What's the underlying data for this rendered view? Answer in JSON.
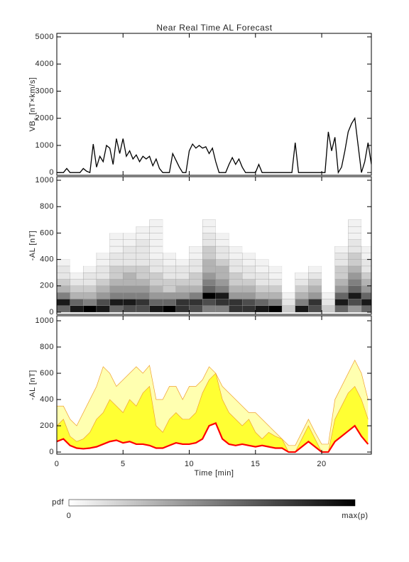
{
  "title": "Near Real Time AL Forecast",
  "colorbar": {
    "label": "pdf",
    "min_label": "0",
    "max_label": "max(p)"
  },
  "chart_data": [
    {
      "type": "line",
      "ylabel": [
        "VB",
        "s",
        " [nT×km/s]"
      ],
      "color": "#000000",
      "xlim": [
        0,
        23.75
      ],
      "ylim": [
        -100,
        5130
      ],
      "yticks": [
        0,
        1000,
        2000,
        3000,
        4000,
        5000
      ],
      "xticks": [
        0,
        5,
        10,
        15,
        20
      ],
      "x": [
        0,
        0.25,
        0.5,
        0.75,
        1,
        1.25,
        1.5,
        1.75,
        2,
        2.25,
        2.5,
        2.75,
        3,
        3.25,
        3.5,
        3.75,
        4,
        4.25,
        4.5,
        4.75,
        5,
        5.25,
        5.5,
        5.75,
        6,
        6.25,
        6.5,
        6.75,
        7,
        7.25,
        7.5,
        7.75,
        8,
        8.25,
        8.5,
        8.75,
        9,
        9.25,
        9.5,
        9.75,
        10,
        10.25,
        10.5,
        10.75,
        11,
        11.25,
        11.5,
        11.75,
        12,
        12.25,
        12.5,
        12.75,
        13,
        13.25,
        13.5,
        13.75,
        14,
        14.25,
        14.5,
        14.75,
        15,
        15.25,
        15.5,
        15.75,
        16,
        16.25,
        16.5,
        16.75,
        17,
        17.25,
        17.5,
        17.75,
        18,
        18.25,
        18.5,
        18.75,
        19,
        19.25,
        19.5,
        19.75,
        20,
        20.25,
        20.5,
        20.75,
        21,
        21.25,
        21.5,
        21.75,
        22,
        22.25,
        22.5,
        22.75,
        23,
        23.25,
        23.5,
        23.75
      ],
      "values": [
        0,
        0,
        0,
        150,
        0,
        0,
        0,
        0,
        150,
        50,
        0,
        1050,
        200,
        600,
        400,
        1000,
        900,
        300,
        1250,
        700,
        1250,
        600,
        800,
        500,
        650,
        400,
        600,
        500,
        600,
        250,
        500,
        150,
        0,
        0,
        0,
        700,
        450,
        200,
        0,
        0,
        800,
        1050,
        900,
        1000,
        900,
        950,
        700,
        900,
        400,
        0,
        0,
        0,
        300,
        550,
        300,
        500,
        200,
        0,
        0,
        0,
        0,
        300,
        0,
        0,
        0,
        0,
        0,
        0,
        0,
        0,
        0,
        0,
        1100,
        0,
        0,
        0,
        0,
        0,
        0,
        0,
        0,
        0,
        1500,
        800,
        1300,
        0,
        200,
        800,
        1500,
        1800,
        2000,
        1000,
        0,
        400,
        1100,
        300
      ]
    },
    {
      "type": "heatmap",
      "ylabel": "-AL [nT]",
      "xlim": [
        0,
        23.75
      ],
      "ylim": [
        -16,
        1027
      ],
      "yticks": [
        0,
        200,
        400,
        600,
        800,
        1000
      ],
      "xticks": [
        0,
        5,
        10,
        15,
        20
      ],
      "x_bins": [
        0,
        1,
        2,
        3,
        4,
        5,
        6,
        7,
        8,
        9,
        10,
        11,
        12,
        13,
        14,
        15,
        16,
        17,
        18,
        19,
        20,
        21,
        22,
        23,
        23.75
      ],
      "y_bins": [
        0,
        50,
        100,
        150,
        200,
        250,
        300,
        350,
        400,
        450,
        500,
        550,
        600,
        650,
        700
      ],
      "values": [
        [
          0.6,
          0.9,
          0.5,
          0.3,
          0.2,
          0.1,
          0.1,
          0.05,
          0,
          0,
          0,
          0,
          0,
          0
        ],
        [
          0.9,
          0.6,
          0.3,
          0.2,
          0.1,
          0.05,
          0,
          0,
          0,
          0,
          0,
          0,
          0,
          0
        ],
        [
          1,
          0.5,
          0.3,
          0.2,
          0.1,
          0.1,
          0.05,
          0,
          0,
          0,
          0,
          0,
          0,
          0
        ],
        [
          0.9,
          0.7,
          0.4,
          0.3,
          0.2,
          0.1,
          0.1,
          0.05,
          0.05,
          0,
          0,
          0,
          0,
          0
        ],
        [
          0.6,
          0.9,
          0.5,
          0.4,
          0.3,
          0.2,
          0.2,
          0.1,
          0.1,
          0.05,
          0.05,
          0.05,
          0,
          0
        ],
        [
          0.7,
          0.9,
          0.5,
          0.4,
          0.3,
          0.3,
          0.2,
          0.1,
          0.1,
          0.1,
          0.05,
          0.05,
          0,
          0
        ],
        [
          0.7,
          0.8,
          0.5,
          0.4,
          0.3,
          0.2,
          0.2,
          0.1,
          0.1,
          0.1,
          0.1,
          0.05,
          0.05,
          0
        ],
        [
          0.9,
          0.6,
          0.4,
          0.3,
          0.2,
          0.2,
          0.1,
          0.1,
          0.05,
          0.05,
          0.05,
          0.05,
          0.05,
          0.05
        ],
        [
          1,
          0.6,
          0.4,
          0.2,
          0.2,
          0.1,
          0.1,
          0.05,
          0.05,
          0,
          0,
          0,
          0,
          0
        ],
        [
          0.8,
          0.8,
          0.4,
          0.3,
          0.2,
          0.1,
          0.1,
          0.05,
          0,
          0,
          0,
          0,
          0,
          0
        ],
        [
          0.7,
          0.8,
          0.5,
          0.3,
          0.2,
          0.2,
          0.1,
          0.1,
          0.05,
          0.05,
          0,
          0,
          0,
          0
        ],
        [
          0.5,
          0.7,
          1,
          0.6,
          0.5,
          0.4,
          0.3,
          0.3,
          0.2,
          0.2,
          0.1,
          0.1,
          0.05,
          0.05
        ],
        [
          0.5,
          0.8,
          0.9,
          0.5,
          0.4,
          0.3,
          0.3,
          0.2,
          0.1,
          0.1,
          0.05,
          0.05,
          0,
          0
        ],
        [
          0.8,
          0.8,
          0.4,
          0.3,
          0.2,
          0.2,
          0.1,
          0.1,
          0.05,
          0.05,
          0,
          0,
          0,
          0
        ],
        [
          0.8,
          0.7,
          0.4,
          0.3,
          0.2,
          0.1,
          0.1,
          0.05,
          0.05,
          0,
          0,
          0,
          0,
          0
        ],
        [
          0.9,
          0.6,
          0.3,
          0.2,
          0.1,
          0.1,
          0.05,
          0.05,
          0,
          0,
          0,
          0,
          0,
          0
        ],
        [
          1,
          0.5,
          0.3,
          0.2,
          0.1,
          0.05,
          0.05,
          0,
          0,
          0,
          0,
          0,
          0,
          0
        ],
        [
          0.2,
          0.1,
          0.05,
          0,
          0,
          0,
          0,
          0,
          0,
          0,
          0,
          0,
          0,
          0
        ],
        [
          0.9,
          0.5,
          0.3,
          0.2,
          0.1,
          0.05,
          0,
          0,
          0,
          0,
          0,
          0,
          0,
          0
        ],
        [
          0.7,
          0.8,
          0.4,
          0.3,
          0.2,
          0.1,
          0.05,
          0,
          0,
          0,
          0,
          0,
          0,
          0
        ],
        [
          0.2,
          0.1,
          0.05,
          0,
          0,
          0,
          0,
          0,
          0,
          0,
          0,
          0,
          0,
          0
        ],
        [
          0.6,
          0.9,
          0.6,
          0.4,
          0.3,
          0.2,
          0.2,
          0.1,
          0.1,
          0.05,
          0,
          0,
          0,
          0
        ],
        [
          0.4,
          0.7,
          0.9,
          0.6,
          0.5,
          0.4,
          0.3,
          0.2,
          0.2,
          0.1,
          0.1,
          0.05,
          0.05,
          0.05
        ],
        [
          0.6,
          0.9,
          0.6,
          0.4,
          0.3,
          0.2,
          0.1,
          0.1,
          0.05,
          0.05,
          0,
          0,
          0,
          0
        ]
      ]
    },
    {
      "type": "band",
      "ylabel": "-AL [nT]",
      "xlabel": "Time [min]",
      "xlim": [
        0,
        23.75
      ],
      "ylim": [
        -16,
        1038
      ],
      "yticks": [
        0,
        200,
        400,
        600,
        800,
        1000
      ],
      "xticks": [
        0,
        5,
        10,
        15,
        20
      ],
      "x": [
        0,
        0.5,
        1,
        1.5,
        2,
        2.5,
        3,
        3.5,
        4,
        4.5,
        5,
        5.5,
        6,
        6.5,
        7,
        7.5,
        8,
        8.5,
        9,
        9.5,
        10,
        10.5,
        11,
        11.5,
        12,
        12.5,
        13,
        13.5,
        14,
        14.5,
        15,
        15.5,
        16,
        16.5,
        17,
        17.5,
        18,
        18.5,
        19,
        19.5,
        20,
        20.5,
        21,
        21.5,
        22,
        22.5,
        23,
        23.5
      ],
      "series": [
        {
          "color": "#ff0000",
          "values": [
            80,
            100,
            50,
            30,
            25,
            30,
            40,
            60,
            80,
            90,
            70,
            80,
            60,
            60,
            50,
            30,
            30,
            50,
            70,
            60,
            60,
            70,
            100,
            200,
            220,
            100,
            60,
            50,
            60,
            50,
            40,
            50,
            40,
            30,
            30,
            0,
            0,
            40,
            80,
            40,
            0,
            0,
            80,
            120,
            160,
            200,
            120,
            60
          ]
        },
        {
          "color": "#ffff33",
          "values": [
            200,
            250,
            120,
            80,
            100,
            150,
            250,
            300,
            400,
            350,
            300,
            400,
            350,
            450,
            500,
            200,
            150,
            250,
            300,
            250,
            250,
            300,
            450,
            550,
            600,
            400,
            300,
            250,
            200,
            250,
            150,
            100,
            150,
            120,
            100,
            0,
            0,
            100,
            200,
            100,
            0,
            0,
            250,
            350,
            450,
            500,
            400,
            250
          ]
        },
        {
          "color": "#ffffb0",
          "values": [
            350,
            350,
            250,
            200,
            300,
            400,
            500,
            650,
            600,
            500,
            550,
            600,
            650,
            600,
            660,
            400,
            400,
            500,
            500,
            400,
            500,
            500,
            550,
            650,
            600,
            500,
            450,
            400,
            350,
            300,
            300,
            250,
            200,
            150,
            100,
            50,
            50,
            150,
            250,
            150,
            60,
            60,
            400,
            500,
            600,
            700,
            600,
            400
          ]
        }
      ]
    }
  ]
}
